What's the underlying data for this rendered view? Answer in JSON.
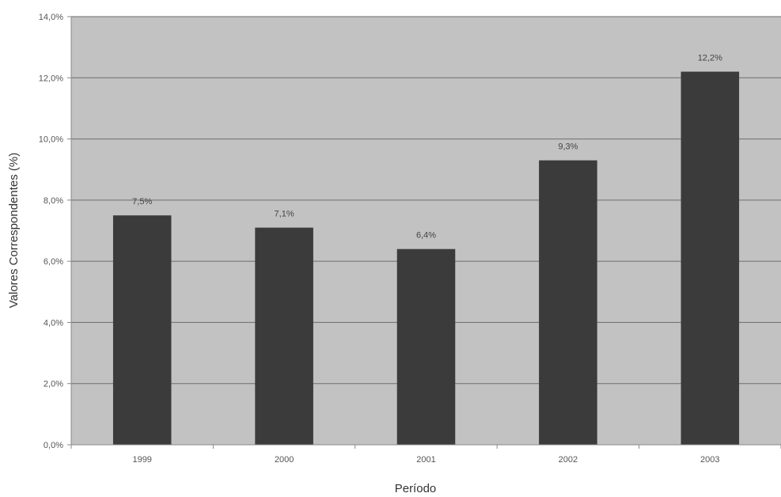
{
  "chart_data": {
    "type": "bar",
    "categories": [
      "1999",
      "2000",
      "2001",
      "2002",
      "2003"
    ],
    "values": [
      7.5,
      7.1,
      6.4,
      9.3,
      12.2
    ],
    "data_labels": [
      "7,5%",
      "7,1%",
      "6,4%",
      "9,3%",
      "12,2%"
    ],
    "title": "",
    "xlabel": "Período",
    "ylabel": "Valores Correspondentes (%)",
    "ylim": [
      0,
      14
    ],
    "yticks": [
      0,
      2,
      4,
      6,
      8,
      10,
      12,
      14
    ],
    "ytick_labels": [
      "0,0%",
      "2,0%",
      "4,0%",
      "6,0%",
      "8,0%",
      "10,0%",
      "12,0%",
      "14,0%"
    ],
    "grid": true,
    "legend": "none",
    "colors": {
      "bar": "#3b3b3b",
      "plot_background": "#c2c2c2",
      "grid": "#6e6e6e",
      "axis": "#888888"
    }
  }
}
